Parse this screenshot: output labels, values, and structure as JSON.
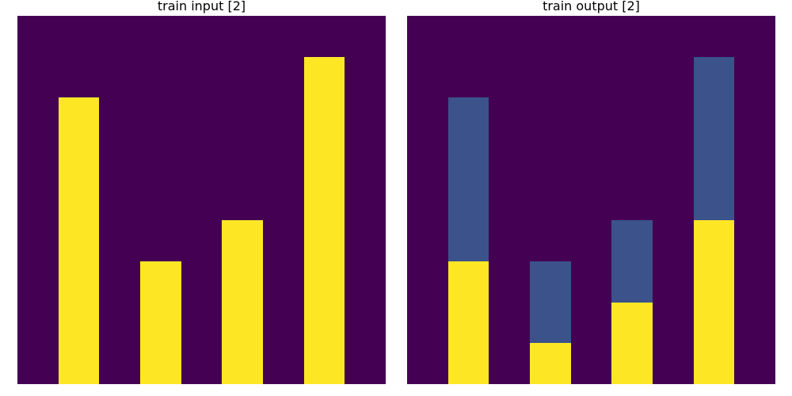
{
  "palette": {
    "0": "#440154",
    "1": "#3b528b",
    "4": "#fde725"
  },
  "panels": [
    {
      "title": "train input [2]",
      "grid": [
        [
          0,
          0,
          0,
          0,
          0,
          0,
          0,
          0,
          0
        ],
        [
          0,
          0,
          0,
          0,
          0,
          0,
          0,
          4,
          0
        ],
        [
          0,
          4,
          0,
          0,
          0,
          0,
          0,
          4,
          0
        ],
        [
          0,
          4,
          0,
          0,
          0,
          0,
          0,
          4,
          0
        ],
        [
          0,
          4,
          0,
          0,
          0,
          0,
          0,
          4,
          0
        ],
        [
          0,
          4,
          0,
          0,
          0,
          4,
          0,
          4,
          0
        ],
        [
          0,
          4,
          0,
          4,
          0,
          4,
          0,
          4,
          0
        ],
        [
          0,
          4,
          0,
          4,
          0,
          4,
          0,
          4,
          0
        ],
        [
          0,
          4,
          0,
          4,
          0,
          4,
          0,
          4,
          0
        ]
      ]
    },
    {
      "title": "train output [2]",
      "grid": [
        [
          0,
          0,
          0,
          0,
          0,
          0,
          0,
          0,
          0
        ],
        [
          0,
          0,
          0,
          0,
          0,
          0,
          0,
          1,
          0
        ],
        [
          0,
          1,
          0,
          0,
          0,
          0,
          0,
          1,
          0
        ],
        [
          0,
          1,
          0,
          0,
          0,
          0,
          0,
          1,
          0
        ],
        [
          0,
          1,
          0,
          0,
          0,
          0,
          0,
          1,
          0
        ],
        [
          0,
          1,
          0,
          0,
          0,
          1,
          0,
          4,
          0
        ],
        [
          0,
          4,
          0,
          1,
          0,
          1,
          0,
          4,
          0
        ],
        [
          0,
          4,
          0,
          1,
          0,
          4,
          0,
          4,
          0
        ],
        [
          0,
          4,
          0,
          4,
          0,
          4,
          0,
          4,
          0
        ]
      ]
    }
  ]
}
